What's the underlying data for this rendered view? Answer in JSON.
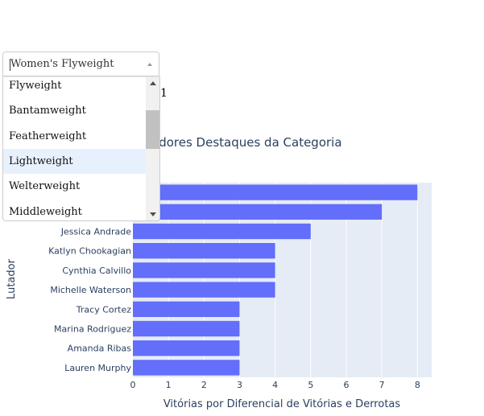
{
  "dropdown": {
    "selected": "Women's Flyweight",
    "options": [
      "Flyweight",
      "Bantamweight",
      "Featherweight",
      "Lightweight",
      "Welterweight",
      "Middleweight"
    ],
    "highlighted_index": 3
  },
  "hidden_text_fragment": "1",
  "colors": {
    "bar": "#636efa",
    "plot_bg": "#e5ecf6",
    "text": "#2a3f5f",
    "highlight": "#e7f1fd"
  },
  "chart_data": {
    "type": "bar",
    "orientation": "horizontal",
    "title": "adores Destaques da Categoria",
    "xlabel": "Vitórias por Diferencial de Vitórias e Derrotas",
    "ylabel": "Lutador",
    "xlim": [
      0,
      8.4
    ],
    "x_ticks": [
      0,
      1,
      2,
      3,
      4,
      5,
      6,
      7,
      8
    ],
    "categories": [
      "",
      "",
      "Jessica Andrade",
      "Katlyn Chookagian",
      "Cynthia Calvillo",
      "Michelle Waterson",
      "Tracy Cortez",
      "Marina Rodriguez",
      "Amanda Ribas",
      "Lauren Murphy"
    ],
    "values": [
      8,
      7,
      5,
      4,
      4,
      4,
      3,
      3,
      3,
      3
    ],
    "grid": true
  }
}
